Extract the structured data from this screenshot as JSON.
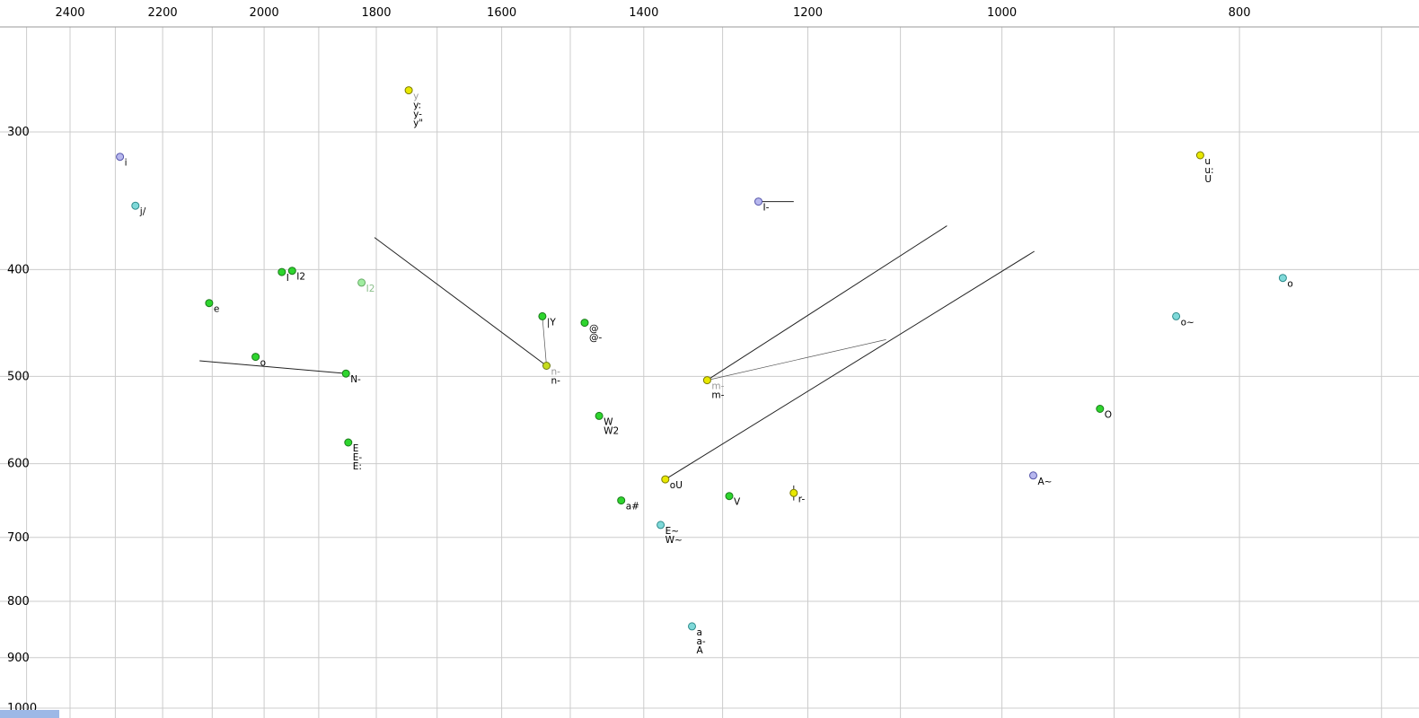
{
  "chart_data": {
    "type": "scatter",
    "title": "",
    "description": "Vowel formant scatter plot, F2 (Hz, log scale, reversed) on x-axis vs F1 (Hz, log scale) on y-axis, with labeled phone tokens and connector lines",
    "x_axis": {
      "ticks": [
        2400,
        2200,
        2000,
        1800,
        1600,
        1400,
        1200,
        1000,
        800
      ],
      "grid_min": 700,
      "grid_max": 2500,
      "grid_step": 100,
      "scale": "log",
      "direction": "reversed"
    },
    "y_axis": {
      "ticks": [
        300,
        400,
        500,
        600,
        700,
        800,
        900,
        1000
      ],
      "scale": "log"
    },
    "points": [
      {
        "f2": 1746,
        "f1": 275,
        "color": "yellow",
        "labels": [
          {
            "t": "y",
            "c": "gray"
          },
          {
            "t": "y:"
          },
          {
            "t": "y-"
          },
          {
            "t": "y\""
          }
        ]
      },
      {
        "f2": 2290,
        "f1": 316,
        "color": "lavender",
        "labels": [
          {
            "t": "i"
          }
        ]
      },
      {
        "f2": 2257,
        "f1": 350,
        "color": "cyan",
        "labels": [
          {
            "t": "j/"
          }
        ]
      },
      {
        "f2": 830,
        "f1": 315,
        "color": "yellow",
        "labels": [
          {
            "t": "u"
          },
          {
            "t": "u:"
          },
          {
            "t": "U"
          }
        ]
      },
      {
        "f2": 1257,
        "f1": 347,
        "color": "lavender",
        "labels": [
          {
            "t": "I-"
          }
        ]
      },
      {
        "f2": 1967,
        "f1": 402,
        "color": "green",
        "labels": [
          {
            "t": "I"
          }
        ]
      },
      {
        "f2": 1948,
        "f1": 401,
        "color": "green",
        "labels": [
          {
            "t": "I2"
          }
        ]
      },
      {
        "f2": 1825,
        "f1": 411,
        "color": "palegreen",
        "labels": [
          {
            "t": "I2",
            "c": "pale"
          }
        ]
      },
      {
        "f2": 2106,
        "f1": 429,
        "color": "green",
        "labels": [
          {
            "t": "e"
          }
        ]
      },
      {
        "f2": 768,
        "f1": 407,
        "color": "cyan",
        "labels": [
          {
            "t": "o"
          }
        ]
      },
      {
        "f2": 849,
        "f1": 441,
        "color": "cyan",
        "labels": [
          {
            "t": "o~"
          }
        ]
      },
      {
        "f2": 1540,
        "f1": 441,
        "color": "green",
        "labels": [
          {
            "t": "|Y"
          }
        ]
      },
      {
        "f2": 1480,
        "f1": 447,
        "color": "green",
        "labels": [
          {
            "t": "@"
          },
          {
            "t": "@-"
          }
        ]
      },
      {
        "f2": 2016,
        "f1": 480,
        "color": "green",
        "labels": [
          {
            "t": "o"
          }
        ]
      },
      {
        "f2": 1852,
        "f1": 497,
        "color": "green",
        "labels": [
          {
            "t": "N-"
          }
        ]
      },
      {
        "f2": 1534,
        "f1": 489,
        "color": "yellowgreen",
        "labels": [
          {
            "t": "n-",
            "c": "gray"
          },
          {
            "t": "n-"
          }
        ]
      },
      {
        "f2": 1319,
        "f1": 504,
        "color": "yellow",
        "labels": [
          {
            "t": "m-",
            "c": "gray"
          },
          {
            "t": "m-"
          }
        ]
      },
      {
        "f2": 1460,
        "f1": 543,
        "color": "green",
        "labels": [
          {
            "t": "W"
          },
          {
            "t": "W2"
          }
        ]
      },
      {
        "f2": 1848,
        "f1": 574,
        "color": "green",
        "labels": [
          {
            "t": "E"
          },
          {
            "t": "E-"
          },
          {
            "t": "E:"
          }
        ]
      },
      {
        "f2": 912,
        "f1": 535,
        "color": "green",
        "labels": [
          {
            "t": "O"
          }
        ]
      },
      {
        "f2": 1372,
        "f1": 620,
        "color": "yellow",
        "labels": [
          {
            "t": "oU"
          }
        ]
      },
      {
        "f2": 971,
        "f1": 615,
        "color": "lavender",
        "labels": [
          {
            "t": "A~"
          }
        ]
      },
      {
        "f2": 1292,
        "f1": 642,
        "color": "green",
        "labels": [
          {
            "t": "V"
          }
        ]
      },
      {
        "f2": 1216,
        "f1": 638,
        "color": "yellow",
        "labels": [
          {
            "t": "r-"
          }
        ]
      },
      {
        "f2": 1430,
        "f1": 648,
        "color": "green",
        "labels": [
          {
            "t": "a#"
          }
        ]
      },
      {
        "f2": 1378,
        "f1": 682,
        "color": "cyan",
        "labels": [
          {
            "t": "E~"
          },
          {
            "t": "W~"
          }
        ]
      },
      {
        "f2": 1338,
        "f1": 843,
        "color": "cyan",
        "labels": [
          {
            "t": "a"
          },
          {
            "t": "a-"
          },
          {
            "t": "A"
          }
        ]
      }
    ],
    "lines": [
      {
        "from": [
          1803,
          374
        ],
        "to": [
          1534,
          489
        ]
      },
      {
        "from": [
          2125,
          484
        ],
        "to": [
          1852,
          497
        ]
      },
      {
        "from": [
          1257,
          347
        ],
        "to": [
          1216,
          347
        ]
      },
      {
        "from": [
          1319,
          504
        ],
        "to": [
          1053,
          365
        ]
      },
      {
        "from": [
          1319,
          504
        ],
        "to": [
          1115,
          463
        ],
        "thin": true
      },
      {
        "from": [
          1372,
          620
        ],
        "to": [
          970,
          385
        ]
      },
      {
        "from": [
          1540,
          441
        ],
        "to": [
          1534,
          489
        ],
        "thin": true
      },
      {
        "from": [
          1216,
          628
        ],
        "to": [
          1216,
          648
        ]
      }
    ]
  },
  "palette": {
    "grid": "#cccccc",
    "border": "#999999",
    "line": "#222222",
    "line_thin": "#555555",
    "label": "#000000",
    "label_gray": "#999999",
    "label_pale": "#8cbf8c",
    "corner_bar": "#9db8e6",
    "dot": {
      "green": {
        "fill": "#2ed52e",
        "stroke": "#1a7a1a"
      },
      "yellow": {
        "fill": "#e8e800",
        "stroke": "#7a7a00"
      },
      "cyan": {
        "fill": "#7fd9d9",
        "stroke": "#2e8b8b"
      },
      "lavender": {
        "fill": "#b7b7ee",
        "stroke": "#5555aa"
      },
      "palegreen": {
        "fill": "#a0eda0",
        "stroke": "#66aa66"
      },
      "yellowgreen": {
        "fill": "#c6dc1e",
        "stroke": "#6e7a10"
      }
    }
  }
}
